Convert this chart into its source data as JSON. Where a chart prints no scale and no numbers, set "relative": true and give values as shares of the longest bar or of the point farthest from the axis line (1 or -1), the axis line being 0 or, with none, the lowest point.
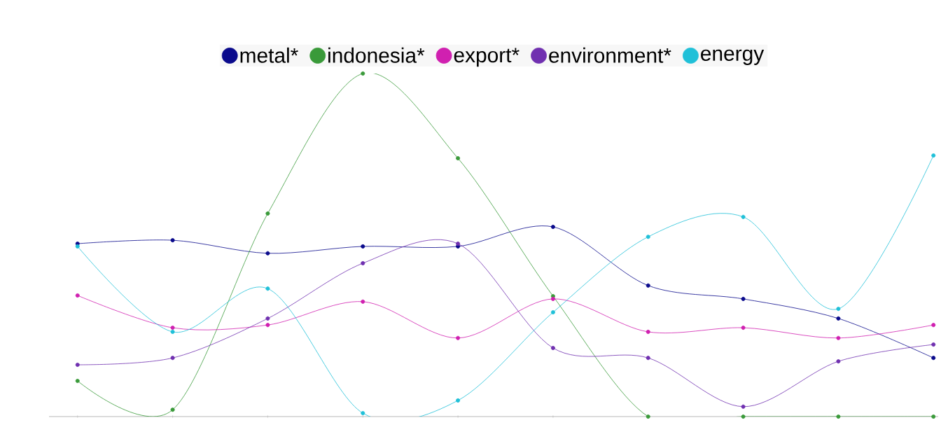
{
  "chart_data": {
    "type": "line",
    "relative": true,
    "legend": "top",
    "marker": "circle",
    "grid": false,
    "categories": [
      null,
      null,
      null,
      null,
      null,
      null,
      null,
      null,
      null,
      null
    ],
    "series": [
      {
        "name": "metal*",
        "color": "#0a0a8c",
        "values": [
          0.504,
          0.514,
          0.476,
          0.496,
          0.496,
          0.553,
          0.382,
          0.343,
          0.286,
          0.171
        ]
      },
      {
        "name": "indonesia*",
        "color": "#3a9a3a",
        "values": [
          0.104,
          0.02,
          0.592,
          1.0,
          0.753,
          0.351,
          0,
          0,
          0,
          0
        ]
      },
      {
        "name": "export*",
        "color": "#d020b0",
        "values": [
          0.353,
          0.259,
          0.267,
          0.335,
          0.229,
          0.343,
          0.247,
          0.259,
          0.229,
          0.267
        ]
      },
      {
        "name": "environment*",
        "color": "#7030b0",
        "values": [
          0.151,
          0.171,
          0.286,
          0.447,
          0.504,
          0.2,
          0.171,
          0.029,
          0.161,
          0.21
        ]
      },
      {
        "name": "energy",
        "color": "#20c0d8",
        "values": [
          0.496,
          0.247,
          0.373,
          0.01,
          0.047,
          0.304,
          0.524,
          0.582,
          0.314,
          0.761
        ]
      }
    ]
  }
}
